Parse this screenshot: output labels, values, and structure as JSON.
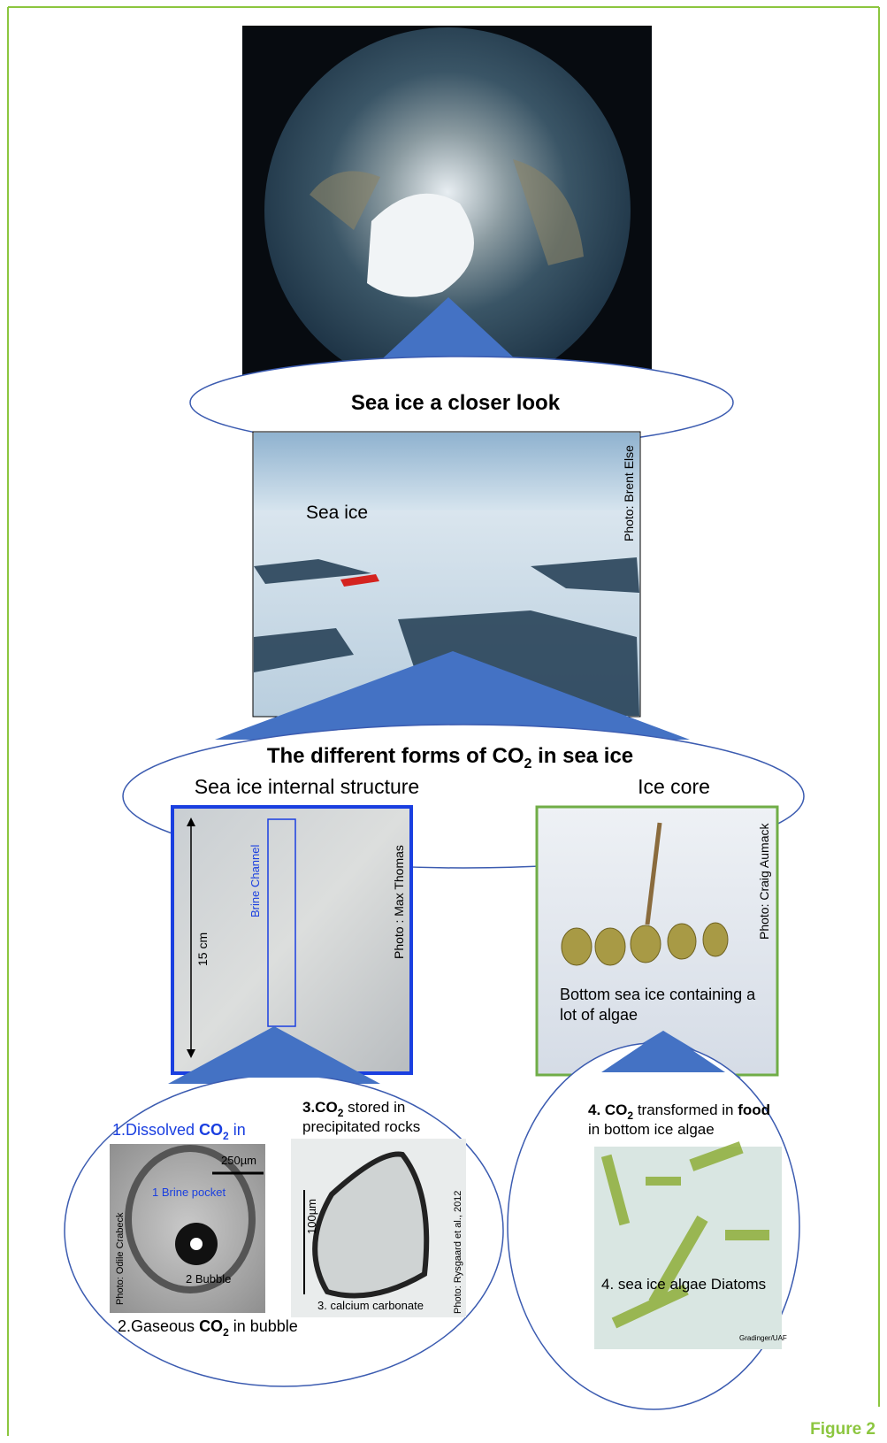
{
  "title": "Sea ice a closer look",
  "photo_sea_ice": {
    "label": "Sea ice",
    "credit": "Photo:  Brent Else"
  },
  "forms_title": [
    "The different forms of CO",
    "2",
    " in sea ice"
  ],
  "internal_structure": {
    "heading": "Sea ice internal structure",
    "channel": "Brine Channel",
    "scale": "15 cm",
    "credit": "Photo : Max Thomas"
  },
  "ice_core": {
    "heading": "Ice core",
    "credit": "Photo:  Craig Aumack",
    "caption": [
      "Bottom sea ice containing a",
      "lot of algae"
    ]
  },
  "brine": {
    "heading": [
      "1.Dissolved ",
      "CO",
      "2",
      " in"
    ],
    "scale": "250µm",
    "pocket": "1 Brine pocket",
    "bubble": "2 Bubble",
    "credit": "Photo: Odile Crabeck",
    "caption": [
      "2.Gaseous ",
      "CO",
      "2",
      " in bubble"
    ]
  },
  "carbonate": {
    "heading": [
      "3.CO",
      "2",
      " stored in",
      "precipitated rocks"
    ],
    "scale": "100µm",
    "label": "3. calcium carbonate",
    "credit": "Photo: Rysgaard  et al., 2012"
  },
  "algae": {
    "heading": [
      "4. CO",
      "2",
      " transformed in ",
      "food",
      "in bottom ice algae"
    ],
    "label": "4. sea ice algae Diatoms",
    "credit": "Gradinger/UAF"
  },
  "figure_label": "Figure 2"
}
